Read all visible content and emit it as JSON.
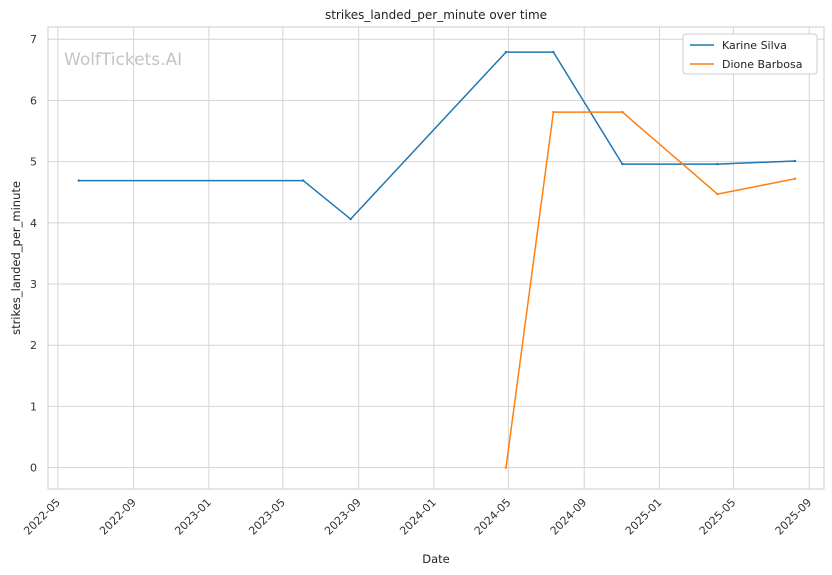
{
  "chart_data": {
    "type": "line",
    "title": "strikes_landed_per_minute over time",
    "xlabel": "Date",
    "ylabel": "strikes_landed_per_minute",
    "watermark": "WolfTickets.AI",
    "x_ticks": [
      "2022-05",
      "2022-09",
      "2023-01",
      "2023-05",
      "2023-09",
      "2024-01",
      "2024-05",
      "2024-09",
      "2025-01",
      "2025-05",
      "2025-09"
    ],
    "y_ticks": [
      "0",
      "1",
      "2",
      "3",
      "4",
      "5",
      "6",
      "7"
    ],
    "xlim": [
      "2022-04-15",
      "2025-09-25"
    ],
    "ylim": [
      -0.35,
      7.2
    ],
    "grid": true,
    "legend_position": "top-right",
    "series": [
      {
        "name": "Karine Silva",
        "color": "#1f77b4",
        "points": [
          {
            "x": "2022-06-04",
            "y": 4.69
          },
          {
            "x": "2023-06-03",
            "y": 4.69
          },
          {
            "x": "2023-08-19",
            "y": 4.06
          },
          {
            "x": "2024-04-27",
            "y": 6.79
          },
          {
            "x": "2024-07-13",
            "y": 6.79
          },
          {
            "x": "2024-11-02",
            "y": 4.96
          },
          {
            "x": "2025-04-05",
            "y": 4.96
          },
          {
            "x": "2025-08-09",
            "y": 5.01
          }
        ]
      },
      {
        "name": "Dione Barbosa",
        "color": "#ff7f0e",
        "points": [
          {
            "x": "2024-04-27",
            "y": 0.0
          },
          {
            "x": "2024-07-13",
            "y": 5.81
          },
          {
            "x": "2024-11-02",
            "y": 5.81
          },
          {
            "x": "2025-04-05",
            "y": 4.47
          },
          {
            "x": "2025-08-09",
            "y": 4.72
          }
        ]
      }
    ]
  }
}
